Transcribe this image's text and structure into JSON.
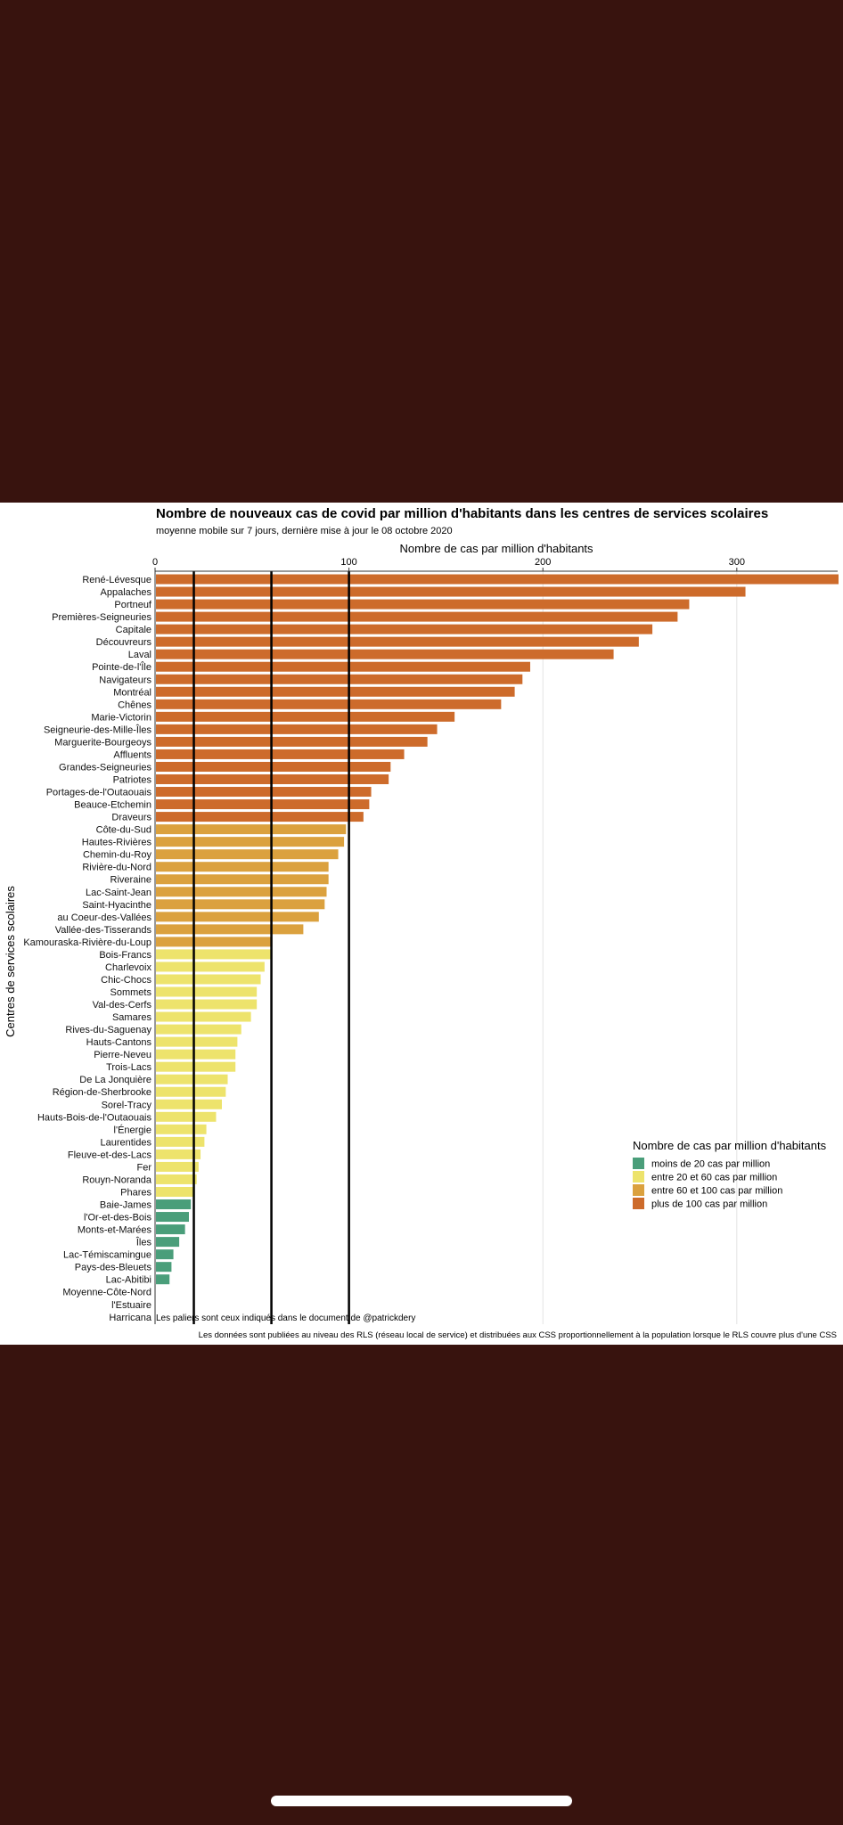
{
  "chart_data": {
    "type": "bar",
    "orientation": "horizontal",
    "title": "Nombre de nouveaux cas de covid par million d'habitants dans les centres de services scolaires",
    "subtitle": "moyenne mobile sur 7 jours, dernière mise à jour le 08 octobre 2020",
    "xlabel": "Nombre de cas par million d'habitants",
    "ylabel": "Centres de services scolaires",
    "x_ticks": [
      0,
      100,
      200,
      300
    ],
    "xlim": [
      0,
      352
    ],
    "grid": true,
    "threshold_lines": [
      20,
      60,
      100
    ],
    "annotation": "Les paliers sont ceux indiqués dans le document de  @patrickdery",
    "caption": "Les données sont publiées au niveau des RLS (réseau local de service) et distribuées aux CSS proportionnellement à la population lorsque le RLS couvre plus d'une CSS",
    "legend": {
      "title": "Nombre de cas par million d'habitants",
      "position": "bottom-right",
      "items": [
        {
          "label": "moins de 20 cas par million",
          "color": "#4a9e7a"
        },
        {
          "label": "entre 20 et 60 cas par million",
          "color": "#ede36c"
        },
        {
          "label": "entre 60 et 100 cas par million",
          "color": "#dba13e"
        },
        {
          "label": "plus de 100 cas par million",
          "color": "#cd6b2b"
        }
      ]
    },
    "categories": [
      "René-Lévesque",
      "Appalaches",
      "Portneuf",
      "Premières-Seigneuries",
      "Capitale",
      "Découvreurs",
      "Laval",
      "Pointe-de-l'Île",
      "Navigateurs",
      "Montréal",
      "Chênes",
      "Marie-Victorin",
      "Seigneurie-des-Mille-Îles",
      "Marguerite-Bourgeoys",
      "Affluents",
      "Grandes-Seigneuries",
      "Patriotes",
      "Portages-de-l'Outaouais",
      "Beauce-Etchemin",
      "Draveurs",
      "Côte-du-Sud",
      "Hautes-Rivières",
      "Chemin-du-Roy",
      "Rivière-du-Nord",
      "Riveraine",
      "Lac-Saint-Jean",
      "Saint-Hyacinthe",
      "au Coeur-des-Vallées",
      "Vallée-des-Tisserands",
      "Kamouraska-Rivière-du-Loup",
      "Bois-Francs",
      "Charlevoix",
      "Chic-Chocs",
      "Sommets",
      "Val-des-Cerfs",
      "Samares",
      "Rives-du-Saguenay",
      "Hauts-Cantons",
      "Pierre-Neveu",
      "Trois-Lacs",
      "De La Jonquière",
      "Région-de-Sherbrooke",
      "Sorel-Tracy",
      "Hauts-Bois-de-l'Outaouais",
      "l'Énergie",
      "Laurentides",
      "Fleuve-et-des-Lacs",
      "Fer",
      "Rouyn-Noranda",
      "Phares",
      "Baie-James",
      "l'Or-et-des-Bois",
      "Monts-et-Marées",
      "Îles",
      "Lac-Témiscamingue",
      "Pays-des-Bleuets",
      "Lac-Abitibi",
      "Moyenne-Côte-Nord",
      "l'Estuaire",
      "Harricana"
    ],
    "values": [
      352,
      304,
      275,
      269,
      256,
      249,
      236,
      193,
      189,
      185,
      178,
      154,
      145,
      140,
      128,
      121,
      120,
      111,
      110,
      107,
      98,
      97,
      94,
      89,
      89,
      88,
      87,
      84,
      76,
      60,
      60,
      56,
      54,
      52,
      52,
      49,
      44,
      42,
      41,
      41,
      37,
      36,
      34,
      31,
      26,
      25,
      23,
      22,
      21,
      20,
      18,
      17,
      15,
      12,
      9,
      8,
      7,
      0,
      0,
      0
    ],
    "tiers": [
      "plus",
      "plus",
      "plus",
      "plus",
      "plus",
      "plus",
      "plus",
      "plus",
      "plus",
      "plus",
      "plus",
      "plus",
      "plus",
      "plus",
      "plus",
      "plus",
      "plus",
      "plus",
      "plus",
      "plus",
      "mid",
      "mid",
      "mid",
      "mid",
      "mid",
      "mid",
      "mid",
      "mid",
      "mid",
      "mid",
      "low",
      "low",
      "low",
      "low",
      "low",
      "low",
      "low",
      "low",
      "low",
      "low",
      "low",
      "low",
      "low",
      "low",
      "low",
      "low",
      "low",
      "low",
      "low",
      "low",
      "moins",
      "moins",
      "moins",
      "moins",
      "moins",
      "moins",
      "moins",
      "moins",
      "moins",
      "moins"
    ]
  }
}
